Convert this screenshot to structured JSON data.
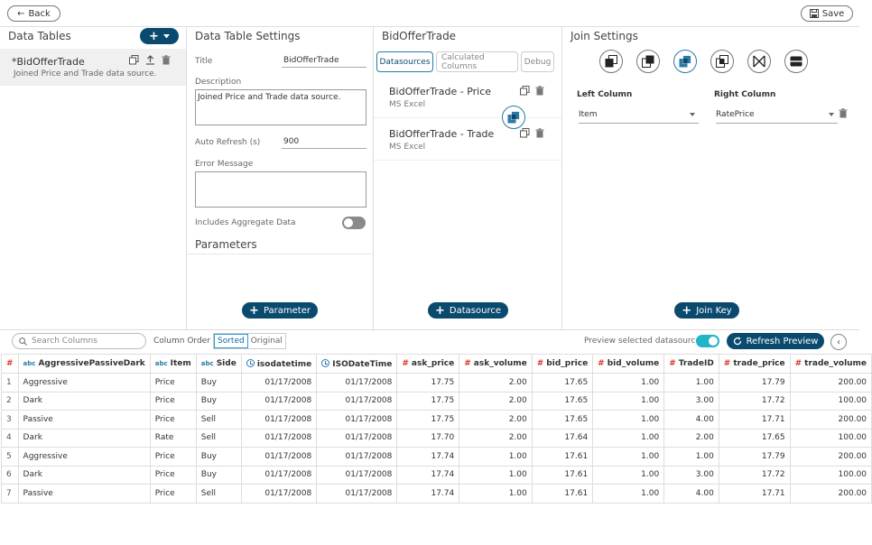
{
  "header": {
    "back_label": "Back",
    "save_label": "Save"
  },
  "data_tables": {
    "title": "Data Tables",
    "item_name": "*BidOfferTrade",
    "item_description": "Joined Price and Trade data source."
  },
  "settings": {
    "title": "Data Table Settings",
    "title_label": "Title",
    "title_value": "BidOfferTrade",
    "description_label": "Description",
    "description_value": "Joined Price and Trade data source.",
    "auto_refresh_label": "Auto Refresh (s)",
    "auto_refresh_value": "900",
    "error_label": "Error Message",
    "error_value": "",
    "aggregate_label": "Includes Aggregate Data",
    "parameters_title": "Parameters",
    "parameter_button": "Parameter"
  },
  "datasources": {
    "title": "BidOfferTrade",
    "tabs": [
      "Datasources",
      "Calculated Columns",
      "Debug"
    ],
    "items": [
      {
        "name": "BidOfferTrade - Price",
        "type": "MS Excel"
      },
      {
        "name": "BidOfferTrade - Trade",
        "type": "MS Excel"
      }
    ],
    "add_button": "Datasource"
  },
  "join": {
    "title": "Join Settings",
    "icons": [
      "left-join-icon",
      "right-join-icon",
      "inner-join-icon",
      "outer-join-icon",
      "bowtie-join-icon",
      "union-join-icon"
    ],
    "left_column_label": "Left Column",
    "right_column_label": "Right Column",
    "left_column_value": "Item",
    "right_column_value": "RatePrice",
    "add_button": "Join Key"
  },
  "preview": {
    "search_placeholder": "Search Columns",
    "column_order_label": "Column Order",
    "sorted_label": "Sorted",
    "original_label": "Original",
    "preview_toggle_label": "Preview selected datasource",
    "refresh_label": "Refresh Preview",
    "row_number_header": "#",
    "columns": [
      {
        "name": "AggressivePassiveDark",
        "type": "abc"
      },
      {
        "name": "Item",
        "type": "abc"
      },
      {
        "name": "Side",
        "type": "abc"
      },
      {
        "name": "isodatetime",
        "type": "date"
      },
      {
        "name": "ISODateTime",
        "type": "date"
      },
      {
        "name": "ask_price",
        "type": "num"
      },
      {
        "name": "ask_volume",
        "type": "num"
      },
      {
        "name": "bid_price",
        "type": "num"
      },
      {
        "name": "bid_volume",
        "type": "num"
      },
      {
        "name": "TradeID",
        "type": "num"
      },
      {
        "name": "trade_price",
        "type": "num"
      },
      {
        "name": "trade_volume",
        "type": "num"
      }
    ],
    "rows": [
      [
        "1",
        "Aggressive",
        "Price",
        "Buy",
        "01/17/2008",
        "01/17/2008",
        "17.75",
        "2.00",
        "17.65",
        "1.00",
        "1.00",
        "17.79",
        "200.00"
      ],
      [
        "2",
        "Dark",
        "Price",
        "Buy",
        "01/17/2008",
        "01/17/2008",
        "17.75",
        "2.00",
        "17.65",
        "1.00",
        "3.00",
        "17.72",
        "100.00"
      ],
      [
        "3",
        "Passive",
        "Price",
        "Sell",
        "01/17/2008",
        "01/17/2008",
        "17.75",
        "2.00",
        "17.65",
        "1.00",
        "4.00",
        "17.71",
        "200.00"
      ],
      [
        "4",
        "Dark",
        "Rate",
        "Sell",
        "01/17/2008",
        "01/17/2008",
        "17.70",
        "2.00",
        "17.64",
        "1.00",
        "2.00",
        "17.65",
        "100.00"
      ],
      [
        "5",
        "Aggressive",
        "Price",
        "Buy",
        "01/17/2008",
        "01/17/2008",
        "17.74",
        "1.00",
        "17.61",
        "1.00",
        "1.00",
        "17.79",
        "200.00"
      ],
      [
        "6",
        "Dark",
        "Price",
        "Buy",
        "01/17/2008",
        "01/17/2008",
        "17.74",
        "1.00",
        "17.61",
        "1.00",
        "3.00",
        "17.72",
        "100.00"
      ],
      [
        "7",
        "Passive",
        "Price",
        "Sell",
        "01/17/2008",
        "01/17/2008",
        "17.74",
        "1.00",
        "17.61",
        "1.00",
        "4.00",
        "17.71",
        "200.00"
      ]
    ]
  },
  "colors": {
    "navy": "#0b4a6f",
    "accent": "#2a9bd4",
    "toggle_on": "#1fb5c9",
    "toggle_off": "#8a8a8a"
  }
}
